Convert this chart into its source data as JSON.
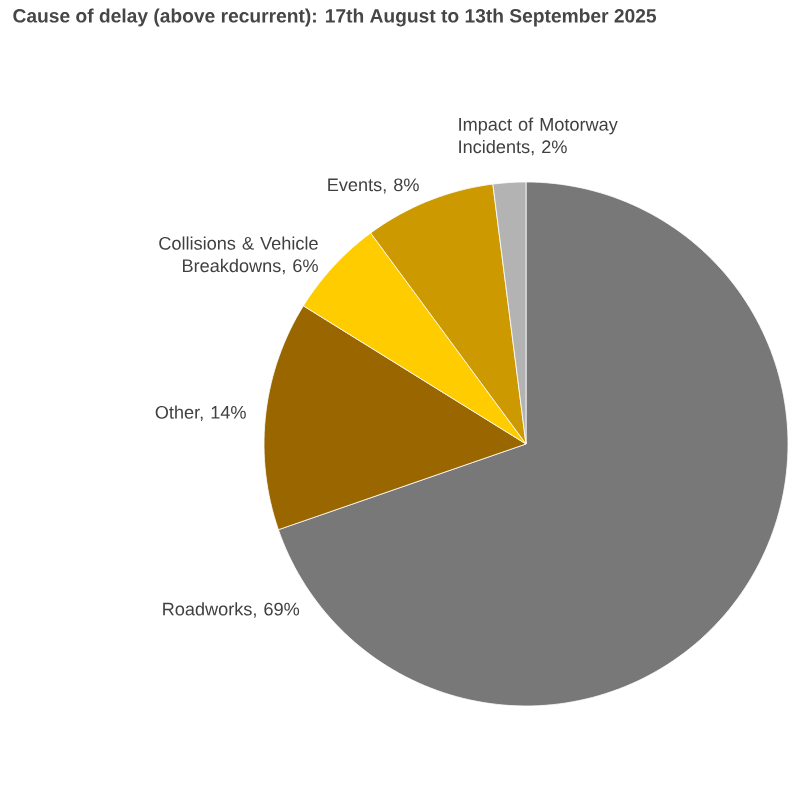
{
  "chart_data": {
    "type": "pie",
    "title": "Cause of delay (above recurrent): 17th August to 13th September 2025",
    "categories": [
      "Roadworks, 69%",
      "Other, 14%",
      "Collisions & Vehicle Breakdowns, 6%",
      "Events, 8%",
      "Impact of Motorway Incidents, 2%"
    ],
    "values": [
      69,
      14,
      6,
      8,
      2
    ],
    "colors": [
      "#787878",
      "#996600",
      "#ffcc00",
      "#cc9900",
      "#b3b3b3"
    ]
  }
}
